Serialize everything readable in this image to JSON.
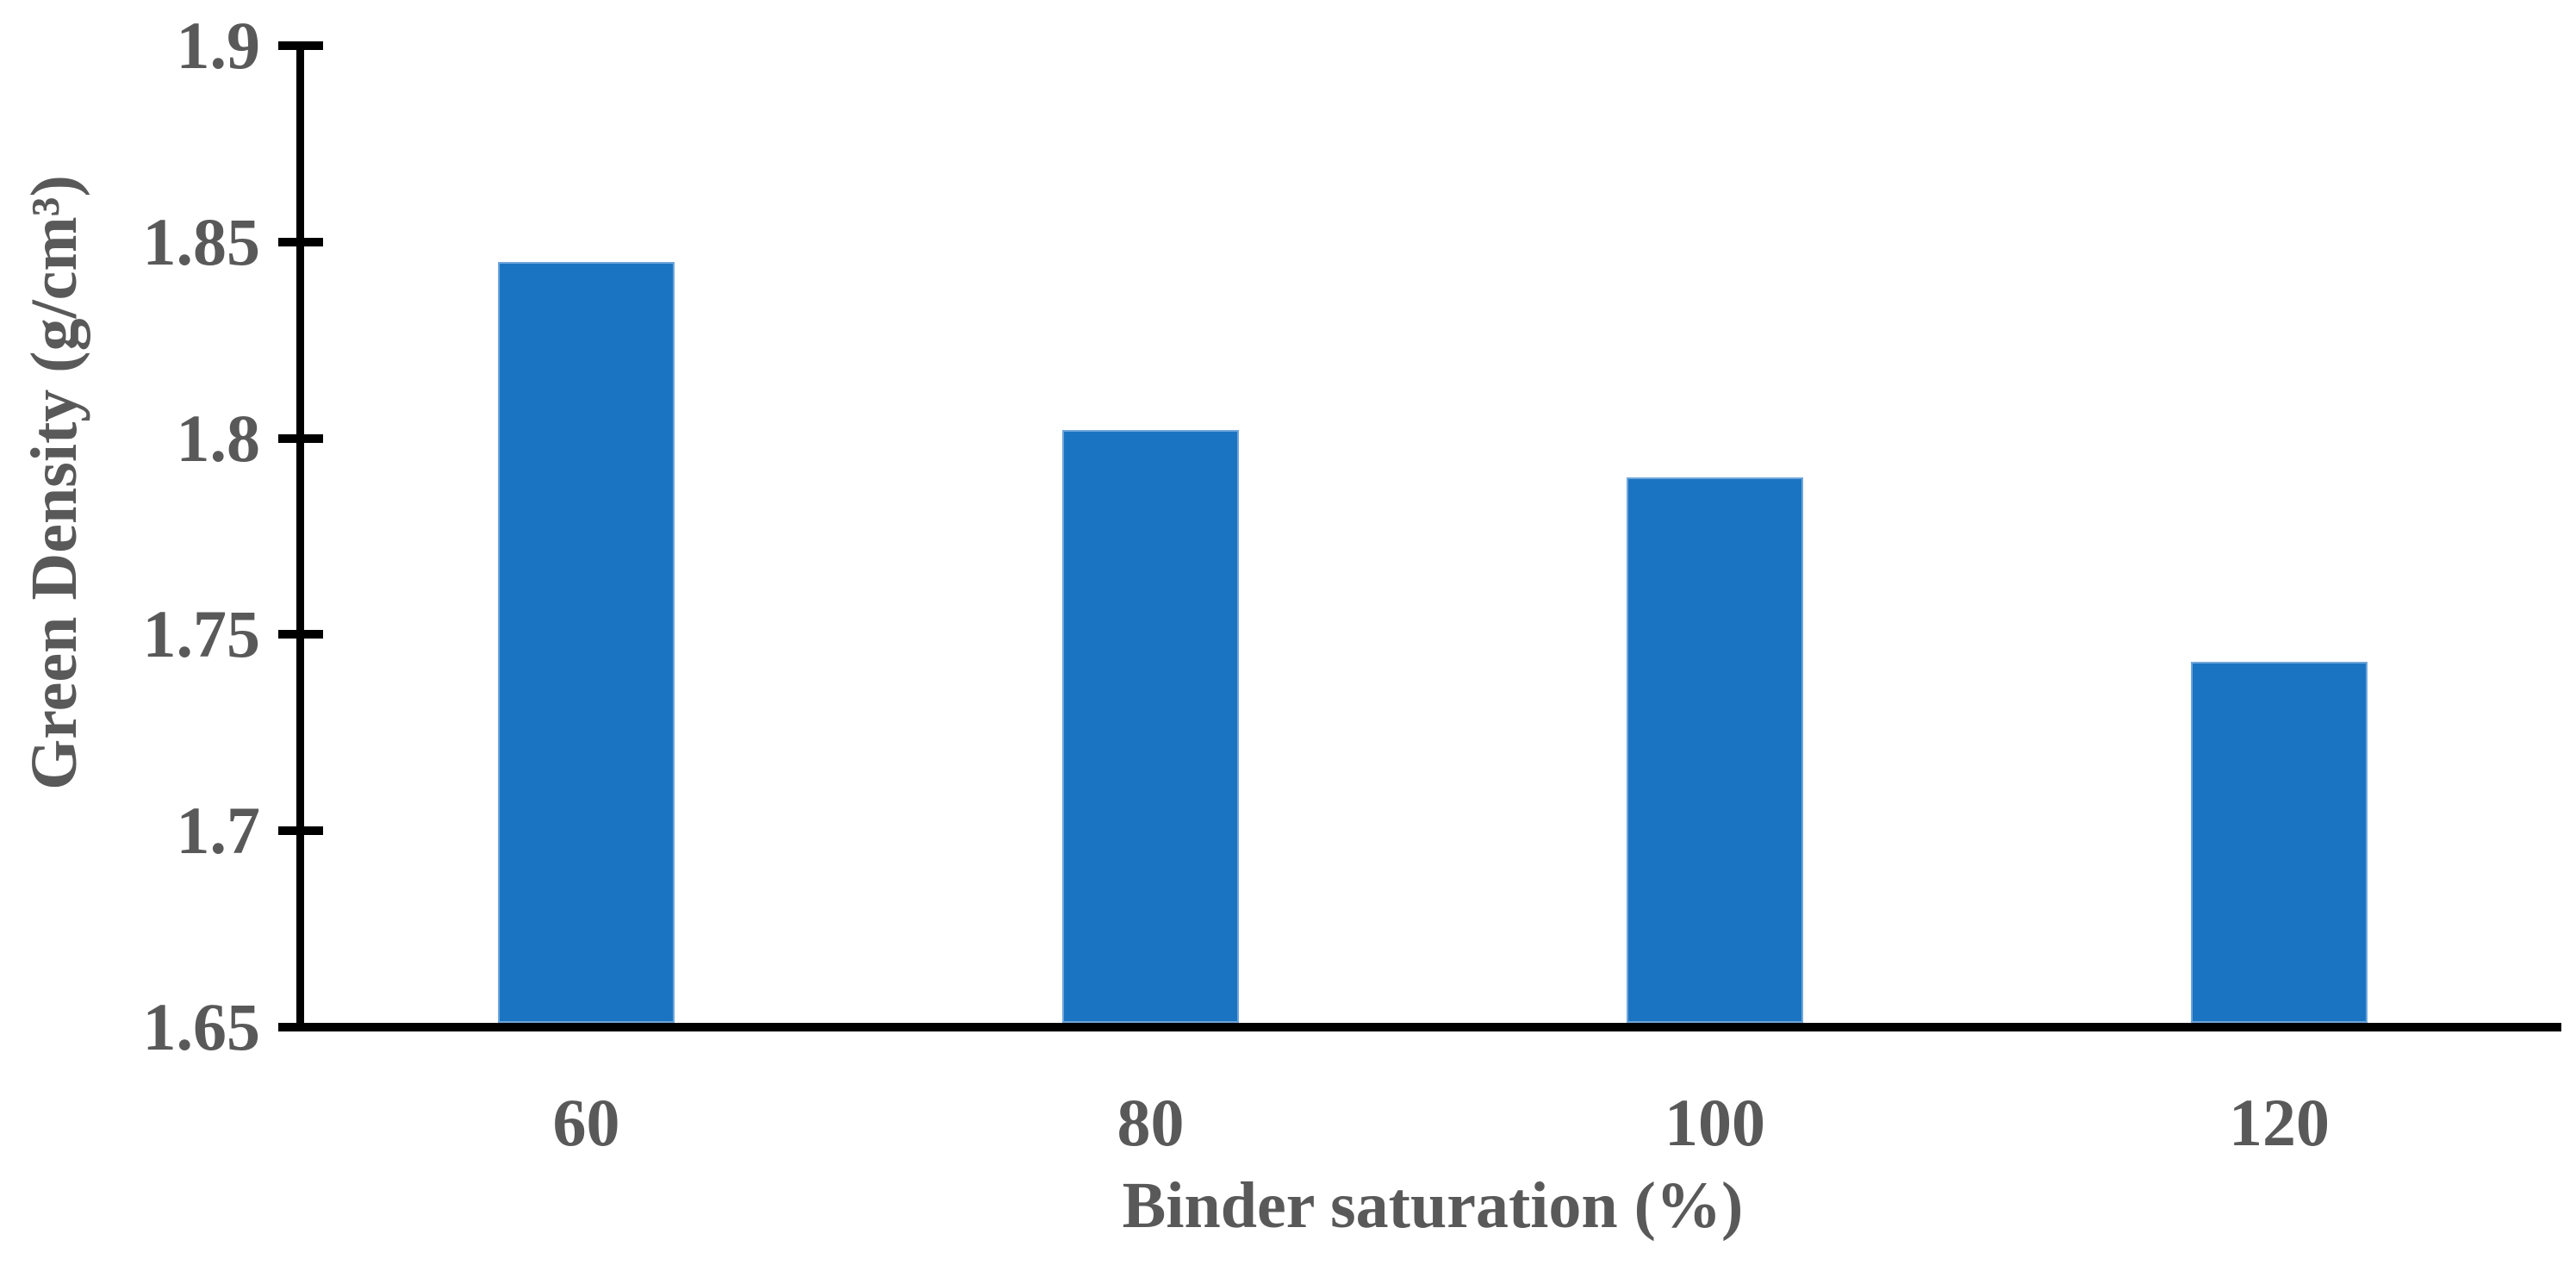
{
  "chart_data": {
    "type": "bar",
    "title": "",
    "xlabel": "Binder saturation (%)",
    "ylabel": "Green Density (g/cm³)",
    "categories": [
      "60",
      "80",
      "100",
      "120"
    ],
    "values": [
      1.845,
      1.802,
      1.79,
      1.743
    ],
    "ylim": [
      1.65,
      1.9
    ],
    "ytick_step": 0.05,
    "yticks": [
      "1.9",
      "1.85",
      "1.8",
      "1.75",
      "1.7",
      "1.65"
    ],
    "grid": "off",
    "legend": "none",
    "bar_fill_color": "#1B74C2",
    "bar_border_color": "#6FA6DB",
    "axis_color": "#000000",
    "text_color": "#595959"
  }
}
